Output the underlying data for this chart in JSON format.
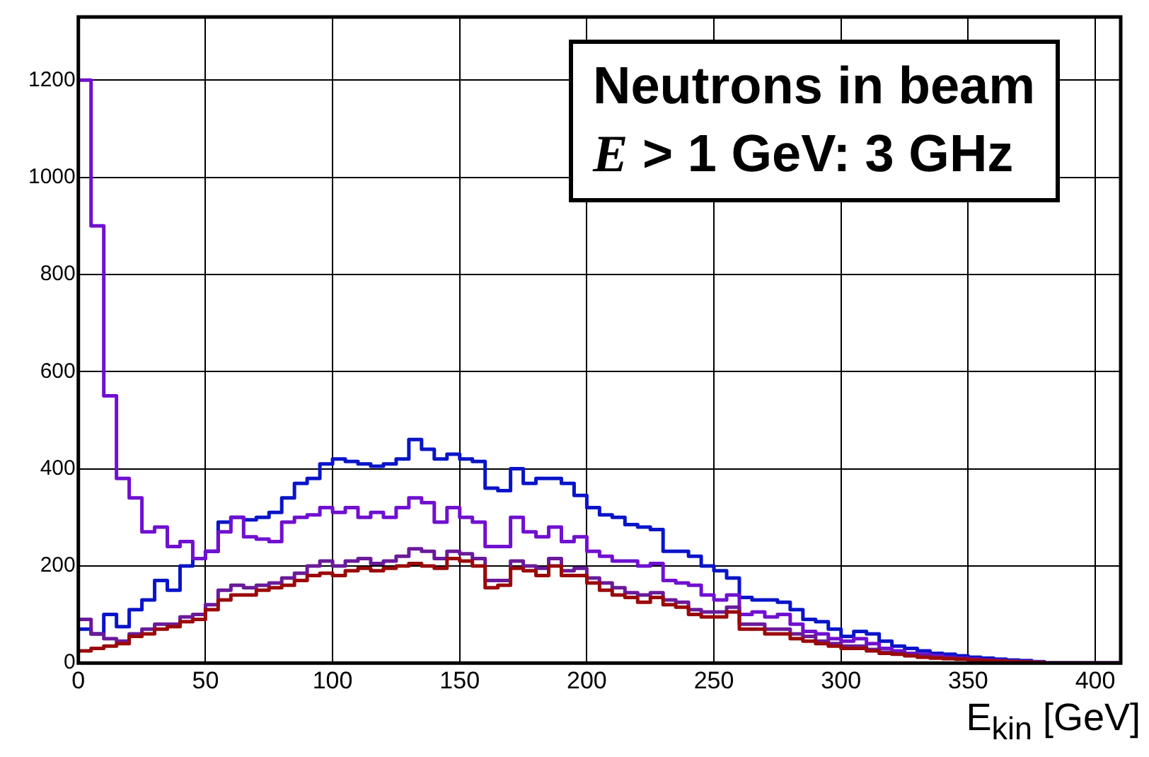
{
  "chart_data": {
    "type": "histogram",
    "xlabel": "E$_{kin}$ [GeV]",
    "annotations": [
      "Neutrons in beam",
      "E > 1 GeV: 3 GHz"
    ],
    "bins": [
      0,
      5,
      10,
      15,
      20,
      25,
      30,
      35,
      40,
      45,
      50,
      55,
      60,
      65,
      70,
      75,
      80,
      85,
      90,
      95,
      100,
      105,
      110,
      115,
      120,
      125,
      130,
      135,
      140,
      145,
      150,
      155,
      160,
      165,
      170,
      175,
      180,
      185,
      190,
      195,
      200,
      205,
      210,
      215,
      220,
      225,
      230,
      235,
      240,
      245,
      250,
      255,
      260,
      265,
      270,
      275,
      280,
      285,
      290,
      295,
      300,
      305,
      310,
      315,
      320,
      325,
      330,
      335,
      340,
      345,
      350,
      355,
      360,
      365,
      370,
      375,
      380,
      385,
      390,
      395,
      400,
      405,
      410
    ],
    "series": [
      {
        "color": "#0a14c8",
        "values": [
          70,
          60,
          100,
          75,
          110,
          130,
          170,
          150,
          200,
          215,
          230,
          290,
          300,
          295,
          300,
          310,
          340,
          370,
          380,
          410,
          420,
          415,
          410,
          405,
          410,
          420,
          460,
          440,
          420,
          430,
          420,
          415,
          360,
          355,
          400,
          370,
          380,
          380,
          370,
          345,
          320,
          305,
          300,
          285,
          280,
          275,
          230,
          230,
          220,
          200,
          190,
          175,
          135,
          130,
          130,
          125,
          110,
          90,
          85,
          70,
          55,
          65,
          60,
          45,
          35,
          30,
          25,
          20,
          18,
          15,
          12,
          10,
          8,
          6,
          5,
          3,
          0,
          0,
          0,
          0,
          0,
          0
        ]
      },
      {
        "color": "#7010d0",
        "values": [
          1200,
          900,
          550,
          380,
          340,
          270,
          280,
          240,
          250,
          215,
          230,
          270,
          300,
          260,
          255,
          250,
          290,
          300,
          305,
          320,
          310,
          320,
          300,
          310,
          300,
          320,
          340,
          330,
          290,
          320,
          300,
          290,
          240,
          240,
          300,
          270,
          260,
          280,
          250,
          260,
          230,
          220,
          210,
          210,
          200,
          205,
          170,
          165,
          160,
          140,
          130,
          140,
          100,
          105,
          95,
          100,
          80,
          65,
          60,
          50,
          45,
          50,
          40,
          30,
          25,
          20,
          18,
          15,
          12,
          10,
          8,
          6,
          5,
          4,
          3,
          2,
          0,
          0,
          0,
          0,
          0,
          0
        ]
      },
      {
        "color": "#6a1a9a",
        "values": [
          90,
          60,
          50,
          45,
          60,
          70,
          80,
          80,
          95,
          100,
          120,
          150,
          160,
          155,
          160,
          165,
          175,
          185,
          200,
          210,
          200,
          210,
          215,
          205,
          210,
          220,
          235,
          230,
          215,
          230,
          225,
          215,
          170,
          170,
          210,
          200,
          195,
          215,
          190,
          195,
          175,
          165,
          155,
          145,
          140,
          145,
          130,
          125,
          110,
          105,
          105,
          115,
          80,
          80,
          70,
          70,
          60,
          55,
          45,
          40,
          35,
          35,
          28,
          22,
          20,
          17,
          14,
          12,
          10,
          9,
          7,
          6,
          5,
          4,
          3,
          2,
          0,
          0,
          0,
          0,
          0,
          0
        ]
      },
      {
        "color": "#9a0a0a",
        "values": [
          25,
          30,
          35,
          40,
          55,
          60,
          70,
          75,
          85,
          90,
          110,
          130,
          140,
          140,
          150,
          155,
          160,
          170,
          180,
          185,
          180,
          190,
          195,
          190,
          195,
          200,
          205,
          200,
          195,
          215,
          210,
          200,
          155,
          160,
          195,
          190,
          180,
          200,
          180,
          180,
          165,
          150,
          140,
          135,
          125,
          135,
          120,
          115,
          100,
          95,
          95,
          105,
          70,
          70,
          60,
          60,
          50,
          45,
          40,
          35,
          30,
          30,
          25,
          20,
          18,
          15,
          12,
          10,
          9,
          8,
          6,
          5,
          4,
          3,
          2,
          1,
          0,
          0,
          0,
          0,
          0,
          0
        ]
      }
    ],
    "xlim": [
      0,
      410
    ],
    "xticks": [
      0,
      50,
      100,
      150,
      200,
      250,
      300,
      350,
      400
    ],
    "ylim": [
      0,
      1330
    ],
    "yticks": [
      0,
      200,
      400,
      600,
      800,
      1000,
      1200
    ],
    "grid": true
  }
}
